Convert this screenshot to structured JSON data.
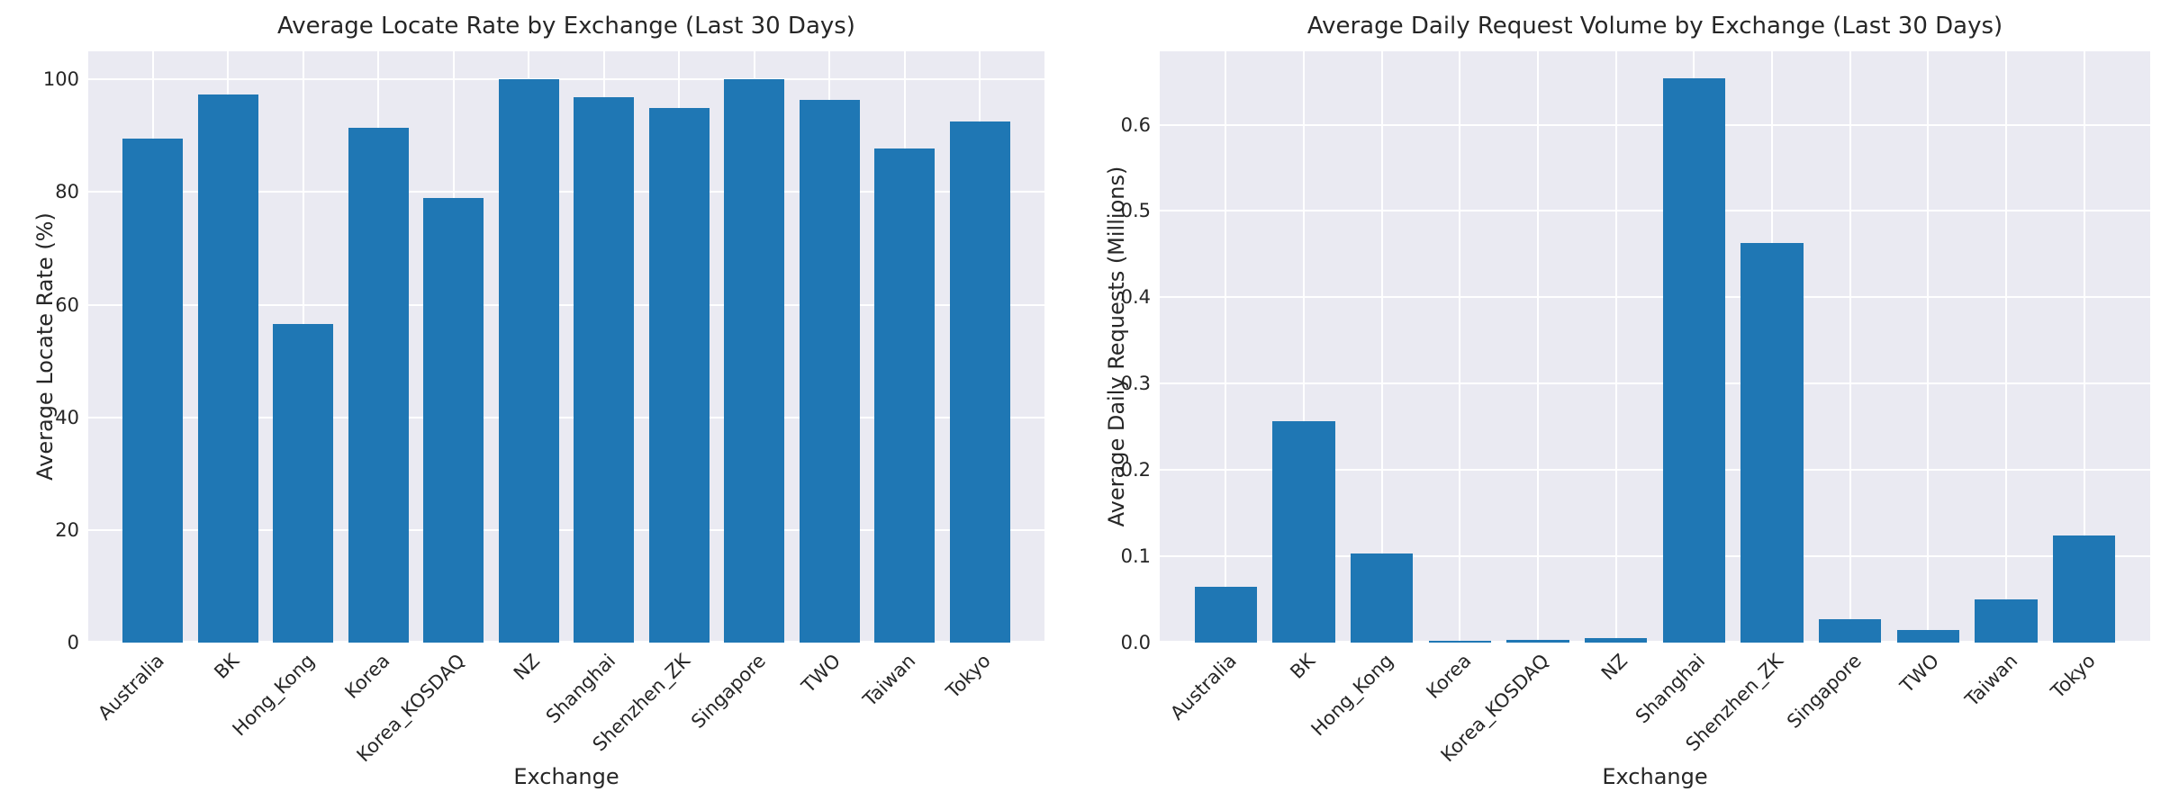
{
  "page": {
    "background_color": "#ffffff"
  },
  "style": {
    "bar_color": "#1f77b4",
    "plot_background": "#eaeaf2",
    "grid_color": "#ffffff",
    "text_color": "#262626"
  },
  "chart_data": [
    {
      "type": "bar",
      "title": "Average Locate Rate by Exchange (Last 30 Days)",
      "xlabel": "Exchange",
      "ylabel": "Average Locate Rate (%)",
      "categories": [
        "Australia",
        "BK",
        "Hong_Kong",
        "Korea",
        "Korea_KOSDAQ",
        "NZ",
        "Shanghai",
        "Shenzhen_ZK",
        "Singapore",
        "TWO",
        "Taiwan",
        "Tokyo"
      ],
      "values": [
        89.5,
        97.3,
        56.6,
        91.4,
        79.0,
        100.0,
        96.8,
        95.0,
        100.0,
        96.4,
        87.7,
        92.5
      ],
      "yticks": [
        0,
        20,
        40,
        60,
        80,
        100
      ],
      "ytick_labels": [
        "0",
        "20",
        "40",
        "60",
        "80",
        "100"
      ],
      "ylim": [
        0,
        105
      ],
      "grid": true,
      "legend": null
    },
    {
      "type": "bar",
      "title": "Average Daily Request Volume by Exchange (Last 30 Days)",
      "xlabel": "Exchange",
      "ylabel": "Average Daily Requests (Millions)",
      "categories": [
        "Australia",
        "BK",
        "Hong_Kong",
        "Korea",
        "Korea_KOSDAQ",
        "NZ",
        "Shanghai",
        "Shenzhen_ZK",
        "Singapore",
        "TWO",
        "Taiwan",
        "Tokyo"
      ],
      "values": [
        0.065,
        0.257,
        0.103,
        0.002,
        0.003,
        0.005,
        0.654,
        0.463,
        0.027,
        0.015,
        0.05,
        0.124
      ],
      "yticks": [
        0.0,
        0.1,
        0.2,
        0.3,
        0.4,
        0.5,
        0.6
      ],
      "ytick_labels": [
        "0.0",
        "0.1",
        "0.2",
        "0.3",
        "0.4",
        "0.5",
        "0.6"
      ],
      "ylim": [
        0,
        0.685
      ],
      "grid": true,
      "legend": null
    }
  ]
}
